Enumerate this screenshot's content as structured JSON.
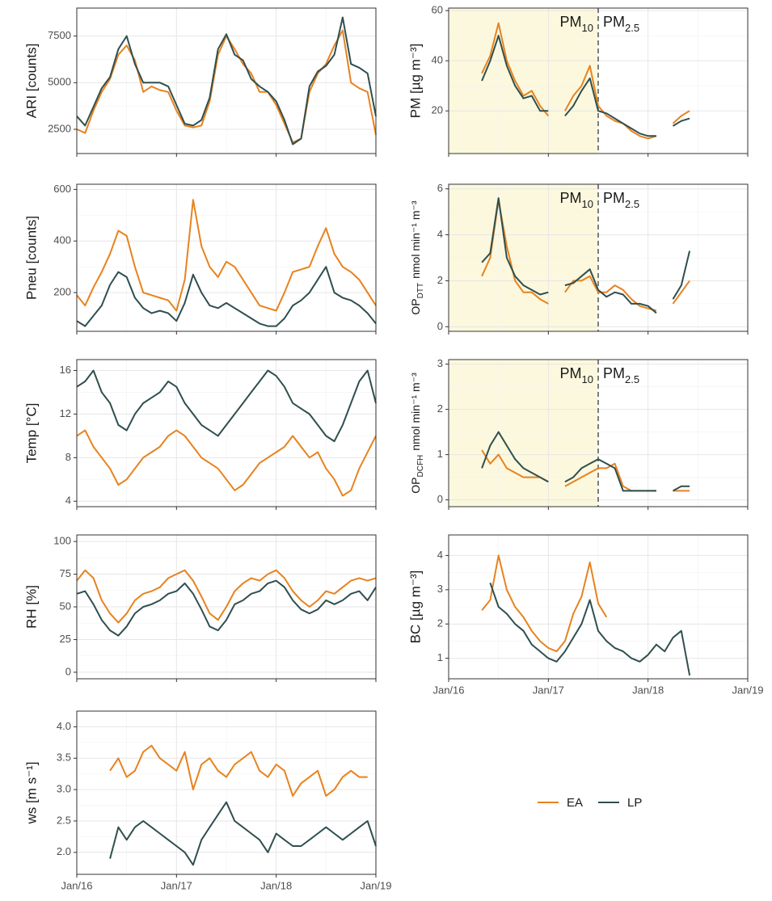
{
  "chart_data": [
    {
      "type": "line",
      "y_label": "ARI [counts]",
      "xlim": [
        0,
        36
      ],
      "xticks": [
        0,
        12,
        24,
        36
      ],
      "ylim": [
        1200,
        9000
      ],
      "yticks": [
        2500,
        5000,
        7500
      ],
      "grid": true,
      "x": [
        0,
        1,
        2,
        3,
        4,
        5,
        6,
        7,
        8,
        9,
        10,
        11,
        12,
        13,
        14,
        15,
        16,
        17,
        18,
        19,
        20,
        21,
        22,
        23,
        24,
        25,
        26,
        27,
        28,
        29,
        30,
        31,
        32,
        33,
        34,
        35,
        36
      ],
      "series": [
        {
          "name": "EA",
          "color": "#e8821e",
          "values": [
            2500,
            2300,
            3500,
            4500,
            5200,
            6500,
            7000,
            6200,
            4500,
            4800,
            4600,
            4500,
            3500,
            2700,
            2600,
            2700,
            4000,
            6500,
            7500,
            6800,
            6000,
            5500,
            4500,
            4500,
            3800,
            2800,
            1800,
            2000,
            4500,
            5500,
            6000,
            7000,
            7800,
            5000,
            4700,
            4500,
            2200
          ]
        },
        {
          "name": "LP",
          "color": "#2f4f4f",
          "values": [
            3200,
            2700,
            3700,
            4700,
            5300,
            6800,
            7500,
            6000,
            5000,
            5000,
            5000,
            4800,
            3800,
            2800,
            2700,
            3000,
            4200,
            6800,
            7600,
            6500,
            6200,
            5200,
            4800,
            4500,
            4000,
            3000,
            1700,
            2000,
            4800,
            5600,
            5900,
            6500,
            8500,
            6000,
            5800,
            5500,
            3200
          ]
        }
      ]
    },
    {
      "type": "line",
      "y_label": "Pneu [counts]",
      "xlim": [
        0,
        36
      ],
      "xticks": [
        0,
        12,
        24,
        36
      ],
      "ylim": [
        50,
        620
      ],
      "yticks": [
        200,
        400,
        600
      ],
      "grid": true,
      "x": [
        0,
        1,
        2,
        3,
        4,
        5,
        6,
        7,
        8,
        9,
        10,
        11,
        12,
        13,
        14,
        15,
        16,
        17,
        18,
        19,
        20,
        21,
        22,
        23,
        24,
        25,
        26,
        27,
        28,
        29,
        30,
        31,
        32,
        33,
        34,
        35,
        36
      ],
      "series": [
        {
          "name": "EA",
          "color": "#e8821e",
          "values": [
            190,
            150,
            220,
            280,
            350,
            440,
            420,
            300,
            200,
            190,
            180,
            170,
            130,
            250,
            560,
            380,
            300,
            260,
            320,
            300,
            250,
            200,
            150,
            140,
            130,
            200,
            280,
            290,
            300,
            380,
            450,
            350,
            300,
            280,
            250,
            200,
            150
          ]
        },
        {
          "name": "LP",
          "color": "#2f4f4f",
          "values": [
            90,
            70,
            110,
            150,
            230,
            280,
            260,
            180,
            140,
            120,
            130,
            120,
            90,
            160,
            270,
            200,
            150,
            140,
            160,
            140,
            120,
            100,
            80,
            70,
            70,
            100,
            150,
            170,
            200,
            250,
            300,
            200,
            180,
            170,
            150,
            120,
            80
          ]
        }
      ]
    },
    {
      "type": "line",
      "y_label": "Temp [°C]",
      "xlim": [
        0,
        36
      ],
      "xticks": [
        0,
        12,
        24,
        36
      ],
      "ylim": [
        3.5,
        17
      ],
      "yticks": [
        4,
        8,
        12,
        16
      ],
      "grid": true,
      "x": [
        0,
        1,
        2,
        3,
        4,
        5,
        6,
        7,
        8,
        9,
        10,
        11,
        12,
        13,
        14,
        15,
        16,
        17,
        18,
        19,
        20,
        21,
        22,
        23,
        24,
        25,
        26,
        27,
        28,
        29,
        30,
        31,
        32,
        33,
        34,
        35,
        36
      ],
      "series": [
        {
          "name": "EA",
          "color": "#e8821e",
          "values": [
            10,
            10.5,
            9,
            8,
            7,
            5.5,
            6,
            7,
            8,
            8.5,
            9,
            10,
            10.5,
            10,
            9,
            8,
            7.5,
            7,
            6,
            5,
            5.5,
            6.5,
            7.5,
            8,
            8.5,
            9,
            10,
            9,
            8,
            8.5,
            7,
            6,
            4.5,
            5,
            7,
            8.5,
            10
          ]
        },
        {
          "name": "LP",
          "color": "#2f4f4f",
          "values": [
            14.5,
            15,
            16,
            14,
            13,
            11,
            10.5,
            12,
            13,
            13.5,
            14,
            15,
            14.5,
            13,
            12,
            11,
            10.5,
            10,
            11,
            12,
            13,
            14,
            15,
            16,
            15.5,
            14.5,
            13,
            12.5,
            12,
            11,
            10,
            9.5,
            11,
            13,
            15,
            16,
            13
          ]
        }
      ]
    },
    {
      "type": "line",
      "y_label": "RH [%]",
      "xlim": [
        0,
        36
      ],
      "xticks": [
        0,
        12,
        24,
        36
      ],
      "ylim": [
        -5,
        105
      ],
      "yticks": [
        0,
        25,
        50,
        75,
        100
      ],
      "grid": true,
      "x": [
        0,
        1,
        2,
        3,
        4,
        5,
        6,
        7,
        8,
        9,
        10,
        11,
        12,
        13,
        14,
        15,
        16,
        17,
        18,
        19,
        20,
        21,
        22,
        23,
        24,
        25,
        26,
        27,
        28,
        29,
        30,
        31,
        32,
        33,
        34,
        35,
        36
      ],
      "series": [
        {
          "name": "EA",
          "color": "#e8821e",
          "values": [
            70,
            78,
            72,
            55,
            45,
            38,
            45,
            55,
            60,
            62,
            65,
            72,
            75,
            78,
            70,
            58,
            45,
            40,
            50,
            62,
            68,
            72,
            70,
            75,
            78,
            72,
            62,
            55,
            50,
            55,
            62,
            60,
            65,
            70,
            72,
            70,
            72
          ]
        },
        {
          "name": "LP",
          "color": "#2f4f4f",
          "values": [
            60,
            62,
            52,
            40,
            32,
            28,
            35,
            45,
            50,
            52,
            55,
            60,
            62,
            68,
            60,
            48,
            35,
            32,
            40,
            52,
            55,
            60,
            62,
            68,
            70,
            65,
            55,
            48,
            45,
            48,
            55,
            52,
            55,
            60,
            62,
            55,
            65
          ]
        }
      ]
    },
    {
      "type": "line",
      "y_label": "ws [m s⁻¹]",
      "xlim": [
        0,
        36
      ],
      "xticks": [
        {
          "value": 0,
          "label": "Jan/16"
        },
        {
          "value": 12,
          "label": "Jan/17"
        },
        {
          "value": 24,
          "label": "Jan/18"
        },
        {
          "value": 36,
          "label": "Jan/19"
        }
      ],
      "ylim": [
        1.65,
        4.25
      ],
      "yticks": [
        {
          "value": 2,
          "label": "2.0"
        },
        2.5,
        {
          "value": 3,
          "label": "3.0"
        },
        3.5,
        {
          "value": 4,
          "label": "4.0"
        }
      ],
      "grid": true,
      "x": [
        4,
        5,
        6,
        7,
        8,
        9,
        10,
        11,
        12,
        13,
        14,
        15,
        16,
        17,
        18,
        19,
        20,
        21,
        22,
        23,
        24,
        25,
        26,
        27,
        28,
        29,
        30,
        31,
        32,
        33,
        34,
        35,
        36
      ],
      "series": [
        {
          "name": "EA",
          "color": "#e8821e",
          "values": [
            3.3,
            3.5,
            3.2,
            3.3,
            3.6,
            3.7,
            3.5,
            3.4,
            3.3,
            3.6,
            3.0,
            3.4,
            3.5,
            3.3,
            3.2,
            3.4,
            3.5,
            3.6,
            3.3,
            3.2,
            3.4,
            3.3,
            2.9,
            3.1,
            3.2,
            3.3,
            2.9,
            3.0,
            3.2,
            3.3,
            3.2,
            3.2,
            null
          ]
        },
        {
          "name": "LP",
          "color": "#2f4f4f",
          "values": [
            1.9,
            2.4,
            2.2,
            2.4,
            2.5,
            2.4,
            2.3,
            2.2,
            2.1,
            2.0,
            1.8,
            2.2,
            2.4,
            2.6,
            2.8,
            2.5,
            2.4,
            2.3,
            2.2,
            2.0,
            2.3,
            2.2,
            2.1,
            2.1,
            2.2,
            2.3,
            2.4,
            2.3,
            2.2,
            2.3,
            2.4,
            2.5,
            2.1
          ]
        }
      ]
    },
    {
      "type": "line",
      "y_label": "PM [µg m⁻³]",
      "xlim": [
        0,
        36
      ],
      "xticks": [
        0,
        12,
        24,
        36
      ],
      "ylim": [
        3,
        61
      ],
      "yticks": [
        20,
        40,
        60
      ],
      "grid": true,
      "divider_x": 18,
      "annotations": [
        {
          "text": "PM",
          "sub": "10"
        },
        {
          "text": "PM",
          "sub": "2.5"
        }
      ],
      "x": [
        4,
        5,
        6,
        7,
        8,
        9,
        10,
        11,
        12,
        13,
        14,
        15,
        16,
        17,
        18,
        19,
        20,
        21,
        22,
        23,
        24,
        25,
        26,
        27,
        28,
        29
      ],
      "series": [
        {
          "name": "EA",
          "color": "#e8821e",
          "values": [
            35,
            42,
            55,
            40,
            32,
            26,
            28,
            22,
            18,
            null,
            20,
            26,
            30,
            38,
            22,
            18,
            16,
            15,
            12,
            10,
            9,
            10,
            null,
            15,
            18,
            20
          ]
        },
        {
          "name": "LP",
          "color": "#2f4f4f",
          "values": [
            32,
            40,
            50,
            38,
            30,
            25,
            26,
            20,
            20,
            null,
            18,
            22,
            28,
            33,
            20,
            19,
            17,
            15,
            13,
            11,
            10,
            10,
            null,
            14,
            16,
            17
          ]
        }
      ]
    },
    {
      "type": "line",
      "y_label": {
        "text": "OP",
        "sub": "DTT",
        "rest": "nmol min⁻¹ m⁻³"
      },
      "xlim": [
        0,
        36
      ],
      "xticks": [
        0,
        12,
        24,
        36
      ],
      "ylim": [
        -0.2,
        6.2
      ],
      "yticks": [
        0,
        2,
        4,
        6
      ],
      "grid": true,
      "divider_x": 18,
      "annotations": [
        {
          "text": "PM",
          "sub": "10"
        },
        {
          "text": "PM",
          "sub": "2.5"
        }
      ],
      "x": [
        4,
        5,
        6,
        7,
        8,
        9,
        10,
        11,
        12,
        13,
        14,
        15,
        16,
        17,
        18,
        19,
        20,
        21,
        22,
        23,
        24,
        25,
        26,
        27,
        28,
        29
      ],
      "series": [
        {
          "name": "EA",
          "color": "#e8821e",
          "values": [
            2.2,
            3,
            5.5,
            3.5,
            2,
            1.5,
            1.5,
            1.2,
            1,
            null,
            1.5,
            2,
            2,
            2.2,
            1.5,
            1.5,
            1.8,
            1.6,
            1.2,
            0.9,
            0.8,
            0.7,
            null,
            1,
            1.5,
            2
          ]
        },
        {
          "name": "LP",
          "color": "#2f4f4f",
          "values": [
            2.8,
            3.2,
            5.6,
            3,
            2.2,
            1.8,
            1.6,
            1.4,
            1.5,
            null,
            1.8,
            1.9,
            2.2,
            2.5,
            1.6,
            1.3,
            1.5,
            1.4,
            1.0,
            1.0,
            0.9,
            0.6,
            null,
            1.2,
            1.8,
            3.3
          ]
        }
      ]
    },
    {
      "type": "line",
      "y_label": {
        "text": "OP",
        "sub": "DCFH",
        "rest": "nmol min⁻¹ m⁻³"
      },
      "xlim": [
        0,
        36
      ],
      "xticks": [
        0,
        12,
        24,
        36
      ],
      "ylim": [
        -0.15,
        3.1
      ],
      "yticks": [
        0,
        1,
        2,
        3
      ],
      "grid": true,
      "divider_x": 18,
      "annotations": [
        {
          "text": "PM",
          "sub": "10"
        },
        {
          "text": "PM",
          "sub": "2.5"
        }
      ],
      "x": [
        4,
        5,
        6,
        7,
        8,
        9,
        10,
        11,
        12,
        13,
        14,
        15,
        16,
        17,
        18,
        19,
        20,
        21,
        22,
        23,
        24,
        25,
        26,
        27,
        28,
        29
      ],
      "series": [
        {
          "name": "EA",
          "color": "#e8821e",
          "values": [
            1.1,
            0.8,
            1.0,
            0.7,
            0.6,
            0.5,
            0.5,
            0.5,
            0.4,
            null,
            0.3,
            0.4,
            0.5,
            0.6,
            0.7,
            0.7,
            0.8,
            0.3,
            0.2,
            0.2,
            0.2,
            0.2,
            null,
            0.2,
            0.2,
            0.2
          ]
        },
        {
          "name": "LP",
          "color": "#2f4f4f",
          "values": [
            0.7,
            1.2,
            1.5,
            1.2,
            0.9,
            0.7,
            0.6,
            0.5,
            0.4,
            null,
            0.4,
            0.5,
            0.7,
            0.8,
            0.9,
            0.8,
            0.7,
            0.2,
            0.2,
            0.2,
            0.2,
            0.2,
            null,
            0.2,
            0.3,
            0.3
          ]
        }
      ]
    },
    {
      "type": "line",
      "y_label": "BC [µg m⁻³]",
      "xlim": [
        0,
        36
      ],
      "xticks": [
        {
          "value": 0,
          "label": "Jan/16"
        },
        {
          "value": 12,
          "label": "Jan/17"
        },
        {
          "value": 24,
          "label": "Jan/18"
        },
        {
          "value": 36,
          "label": "Jan/19"
        }
      ],
      "ylim": [
        0.4,
        4.6
      ],
      "yticks": [
        1,
        2,
        3,
        4
      ],
      "grid": true,
      "x": [
        4,
        5,
        6,
        7,
        8,
        9,
        10,
        11,
        12,
        13,
        14,
        15,
        16,
        17,
        18,
        19,
        20,
        21,
        22,
        23,
        24,
        25,
        26,
        27,
        28,
        29
      ],
      "series": [
        {
          "name": "EA",
          "color": "#e8821e",
          "values": [
            2.4,
            2.7,
            4,
            3,
            2.5,
            2.2,
            1.8,
            1.5,
            1.3,
            1.2,
            1.5,
            2.3,
            2.8,
            3.8,
            2.6,
            2.2,
            null,
            null,
            null,
            null,
            null,
            null,
            null,
            null,
            null,
            null
          ]
        },
        {
          "name": "LP",
          "color": "#2f4f4f",
          "values": [
            null,
            3.2,
            2.5,
            2.3,
            2.0,
            1.8,
            1.4,
            1.2,
            1.0,
            0.9,
            1.2,
            1.6,
            2.0,
            2.7,
            1.8,
            1.5,
            1.3,
            1.2,
            1.0,
            0.9,
            1.1,
            1.4,
            1.2,
            1.6,
            1.8,
            0.5
          ]
        }
      ]
    }
  ]
}
